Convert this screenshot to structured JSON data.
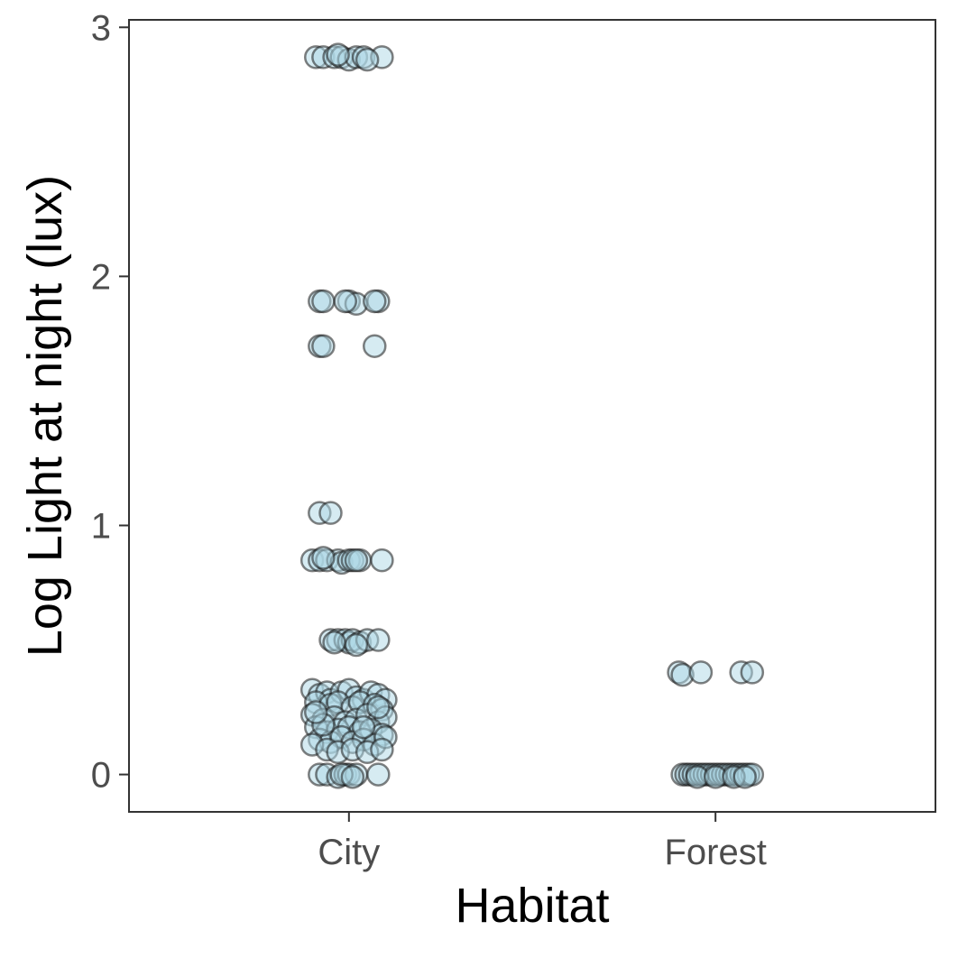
{
  "chart_data": {
    "type": "scatter",
    "xlabel": "Habitat",
    "ylabel": "Log Light at night (lux)",
    "categories": [
      "City",
      "Forest"
    ],
    "yticks": [
      0,
      1,
      2,
      3
    ],
    "ylim": [
      -0.15,
      3.03
    ],
    "grid": false,
    "legend": "none",
    "colors": {
      "fill": "#add8e6",
      "stroke": "#1a1a1a",
      "frame": "#333333"
    },
    "series": [
      {
        "category": "City",
        "points": [
          [
            -0.09,
            2.88
          ],
          [
            -0.07,
            2.88
          ],
          [
            -0.04,
            2.88
          ],
          [
            -0.02,
            2.88
          ],
          [
            0.0,
            2.87
          ],
          [
            0.02,
            2.88
          ],
          [
            0.04,
            2.88
          ],
          [
            0.09,
            2.88
          ],
          [
            -0.03,
            2.89
          ],
          [
            0.05,
            2.87
          ],
          [
            -0.08,
            1.9
          ],
          [
            -0.07,
            1.9
          ],
          [
            0.0,
            1.9
          ],
          [
            0.02,
            1.89
          ],
          [
            0.08,
            1.9
          ],
          [
            -0.01,
            1.9
          ],
          [
            0.07,
            1.9
          ],
          [
            -0.08,
            1.72
          ],
          [
            -0.07,
            1.72
          ],
          [
            0.07,
            1.72
          ],
          [
            -0.08,
            1.05
          ],
          [
            -0.05,
            1.05
          ],
          [
            -0.1,
            0.86
          ],
          [
            -0.08,
            0.86
          ],
          [
            -0.06,
            0.86
          ],
          [
            -0.03,
            0.86
          ],
          [
            -0.02,
            0.85
          ],
          [
            0.0,
            0.86
          ],
          [
            0.01,
            0.86
          ],
          [
            0.03,
            0.86
          ],
          [
            0.09,
            0.86
          ],
          [
            -0.07,
            0.87
          ],
          [
            0.02,
            0.86
          ],
          [
            -0.05,
            0.54
          ],
          [
            -0.03,
            0.54
          ],
          [
            -0.01,
            0.54
          ],
          [
            0.0,
            0.53
          ],
          [
            0.01,
            0.54
          ],
          [
            0.03,
            0.53
          ],
          [
            0.05,
            0.54
          ],
          [
            0.08,
            0.54
          ],
          [
            -0.04,
            0.53
          ],
          [
            0.02,
            0.52
          ],
          [
            -0.1,
            0.34
          ],
          [
            -0.08,
            0.32
          ],
          [
            -0.06,
            0.33
          ],
          [
            -0.05,
            0.3
          ],
          [
            -0.02,
            0.33
          ],
          [
            0.0,
            0.34
          ],
          [
            0.02,
            0.31
          ],
          [
            0.04,
            0.3
          ],
          [
            0.06,
            0.33
          ],
          [
            0.08,
            0.32
          ],
          [
            0.1,
            0.3
          ],
          [
            -0.09,
            0.29
          ],
          [
            -0.05,
            0.28
          ],
          [
            -0.03,
            0.29
          ],
          [
            0.01,
            0.27
          ],
          [
            0.03,
            0.29
          ],
          [
            0.07,
            0.28
          ],
          [
            0.09,
            0.26
          ],
          [
            -0.1,
            0.24
          ],
          [
            -0.07,
            0.22
          ],
          [
            -0.04,
            0.23
          ],
          [
            -0.01,
            0.21
          ],
          [
            0.02,
            0.22
          ],
          [
            0.05,
            0.24
          ],
          [
            0.08,
            0.21
          ],
          [
            0.1,
            0.23
          ],
          [
            -0.09,
            0.19
          ],
          [
            -0.06,
            0.17
          ],
          [
            -0.03,
            0.18
          ],
          [
            0.0,
            0.19
          ],
          [
            0.03,
            0.17
          ],
          [
            0.06,
            0.18
          ],
          [
            0.09,
            0.16
          ],
          [
            -0.08,
            0.14
          ],
          [
            -0.05,
            0.13
          ],
          [
            -0.02,
            0.15
          ],
          [
            0.01,
            0.13
          ],
          [
            0.04,
            0.14
          ],
          [
            0.07,
            0.12
          ],
          [
            0.1,
            0.15
          ],
          [
            -0.1,
            0.12
          ],
          [
            -0.06,
            0.1
          ],
          [
            -0.03,
            0.09
          ],
          [
            0.01,
            0.1
          ],
          [
            0.05,
            0.09
          ],
          [
            0.09,
            0.1
          ],
          [
            -0.07,
            0.2
          ],
          [
            0.04,
            0.19
          ],
          [
            -0.09,
            0.25
          ],
          [
            0.08,
            0.27
          ],
          [
            -0.08,
            0.0
          ],
          [
            -0.06,
            0.0
          ],
          [
            -0.03,
            -0.01
          ],
          [
            -0.01,
            0.0
          ],
          [
            0.0,
            0.0
          ],
          [
            0.02,
            0.0
          ],
          [
            0.08,
            0.0
          ],
          [
            -0.02,
            0.0
          ],
          [
            0.01,
            -0.01
          ]
        ]
      },
      {
        "category": "Forest",
        "points": [
          [
            -0.1,
            0.41
          ],
          [
            -0.09,
            0.4
          ],
          [
            -0.04,
            0.41
          ],
          [
            0.07,
            0.41
          ],
          [
            0.1,
            0.41
          ],
          [
            -0.09,
            0.0
          ],
          [
            -0.08,
            0.0
          ],
          [
            -0.07,
            0.0
          ],
          [
            -0.06,
            0.0
          ],
          [
            -0.05,
            0.0
          ],
          [
            -0.04,
            0.0
          ],
          [
            -0.03,
            0.0
          ],
          [
            -0.02,
            0.0
          ],
          [
            -0.01,
            0.0
          ],
          [
            0.0,
            0.0
          ],
          [
            0.01,
            0.0
          ],
          [
            0.02,
            0.0
          ],
          [
            0.03,
            0.0
          ],
          [
            0.04,
            0.0
          ],
          [
            0.05,
            0.0
          ],
          [
            0.06,
            0.0
          ],
          [
            0.07,
            0.0
          ],
          [
            0.08,
            0.0
          ],
          [
            0.09,
            0.0
          ],
          [
            0.1,
            0.0
          ],
          [
            -0.05,
            -0.01
          ],
          [
            0.0,
            -0.01
          ],
          [
            0.05,
            -0.01
          ],
          [
            0.08,
            -0.01
          ]
        ]
      }
    ]
  }
}
